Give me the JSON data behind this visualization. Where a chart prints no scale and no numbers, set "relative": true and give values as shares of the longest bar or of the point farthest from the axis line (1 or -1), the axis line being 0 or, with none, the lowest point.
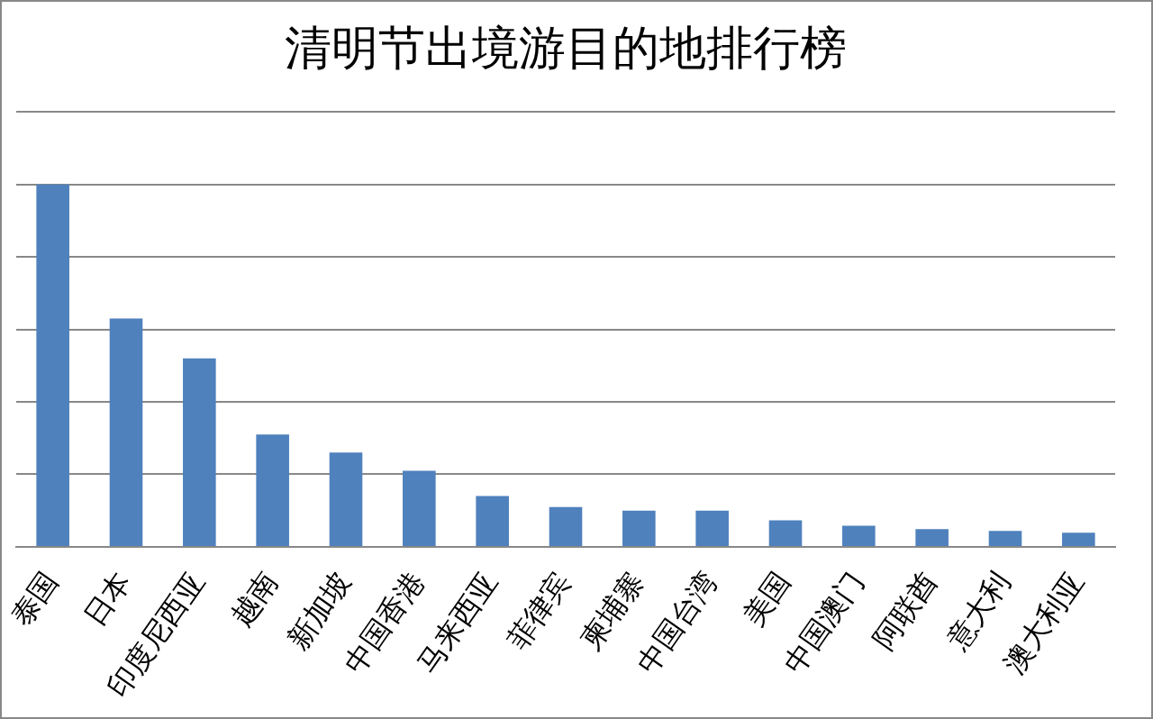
{
  "chart_data": {
    "type": "bar",
    "title": "清明节出境游目的地排行榜",
    "relative": true,
    "grid": "y",
    "color": "#4f81bd",
    "categories": [
      "泰国",
      "日本",
      "印度尼西亚",
      "越南",
      "新加坡",
      "中国香港",
      "马来西亚",
      "菲律宾",
      "柬埔寨",
      "中国台湾",
      "美国",
      "中国澳门",
      "阿联酋",
      "意大利",
      "澳大利亚"
    ],
    "values": [
      1,
      0.63,
      0.52,
      0.31,
      0.26,
      0.21,
      0.14,
      0.11,
      0.1,
      0.1,
      0.073,
      0.058,
      0.049,
      0.044,
      0.039
    ]
  }
}
